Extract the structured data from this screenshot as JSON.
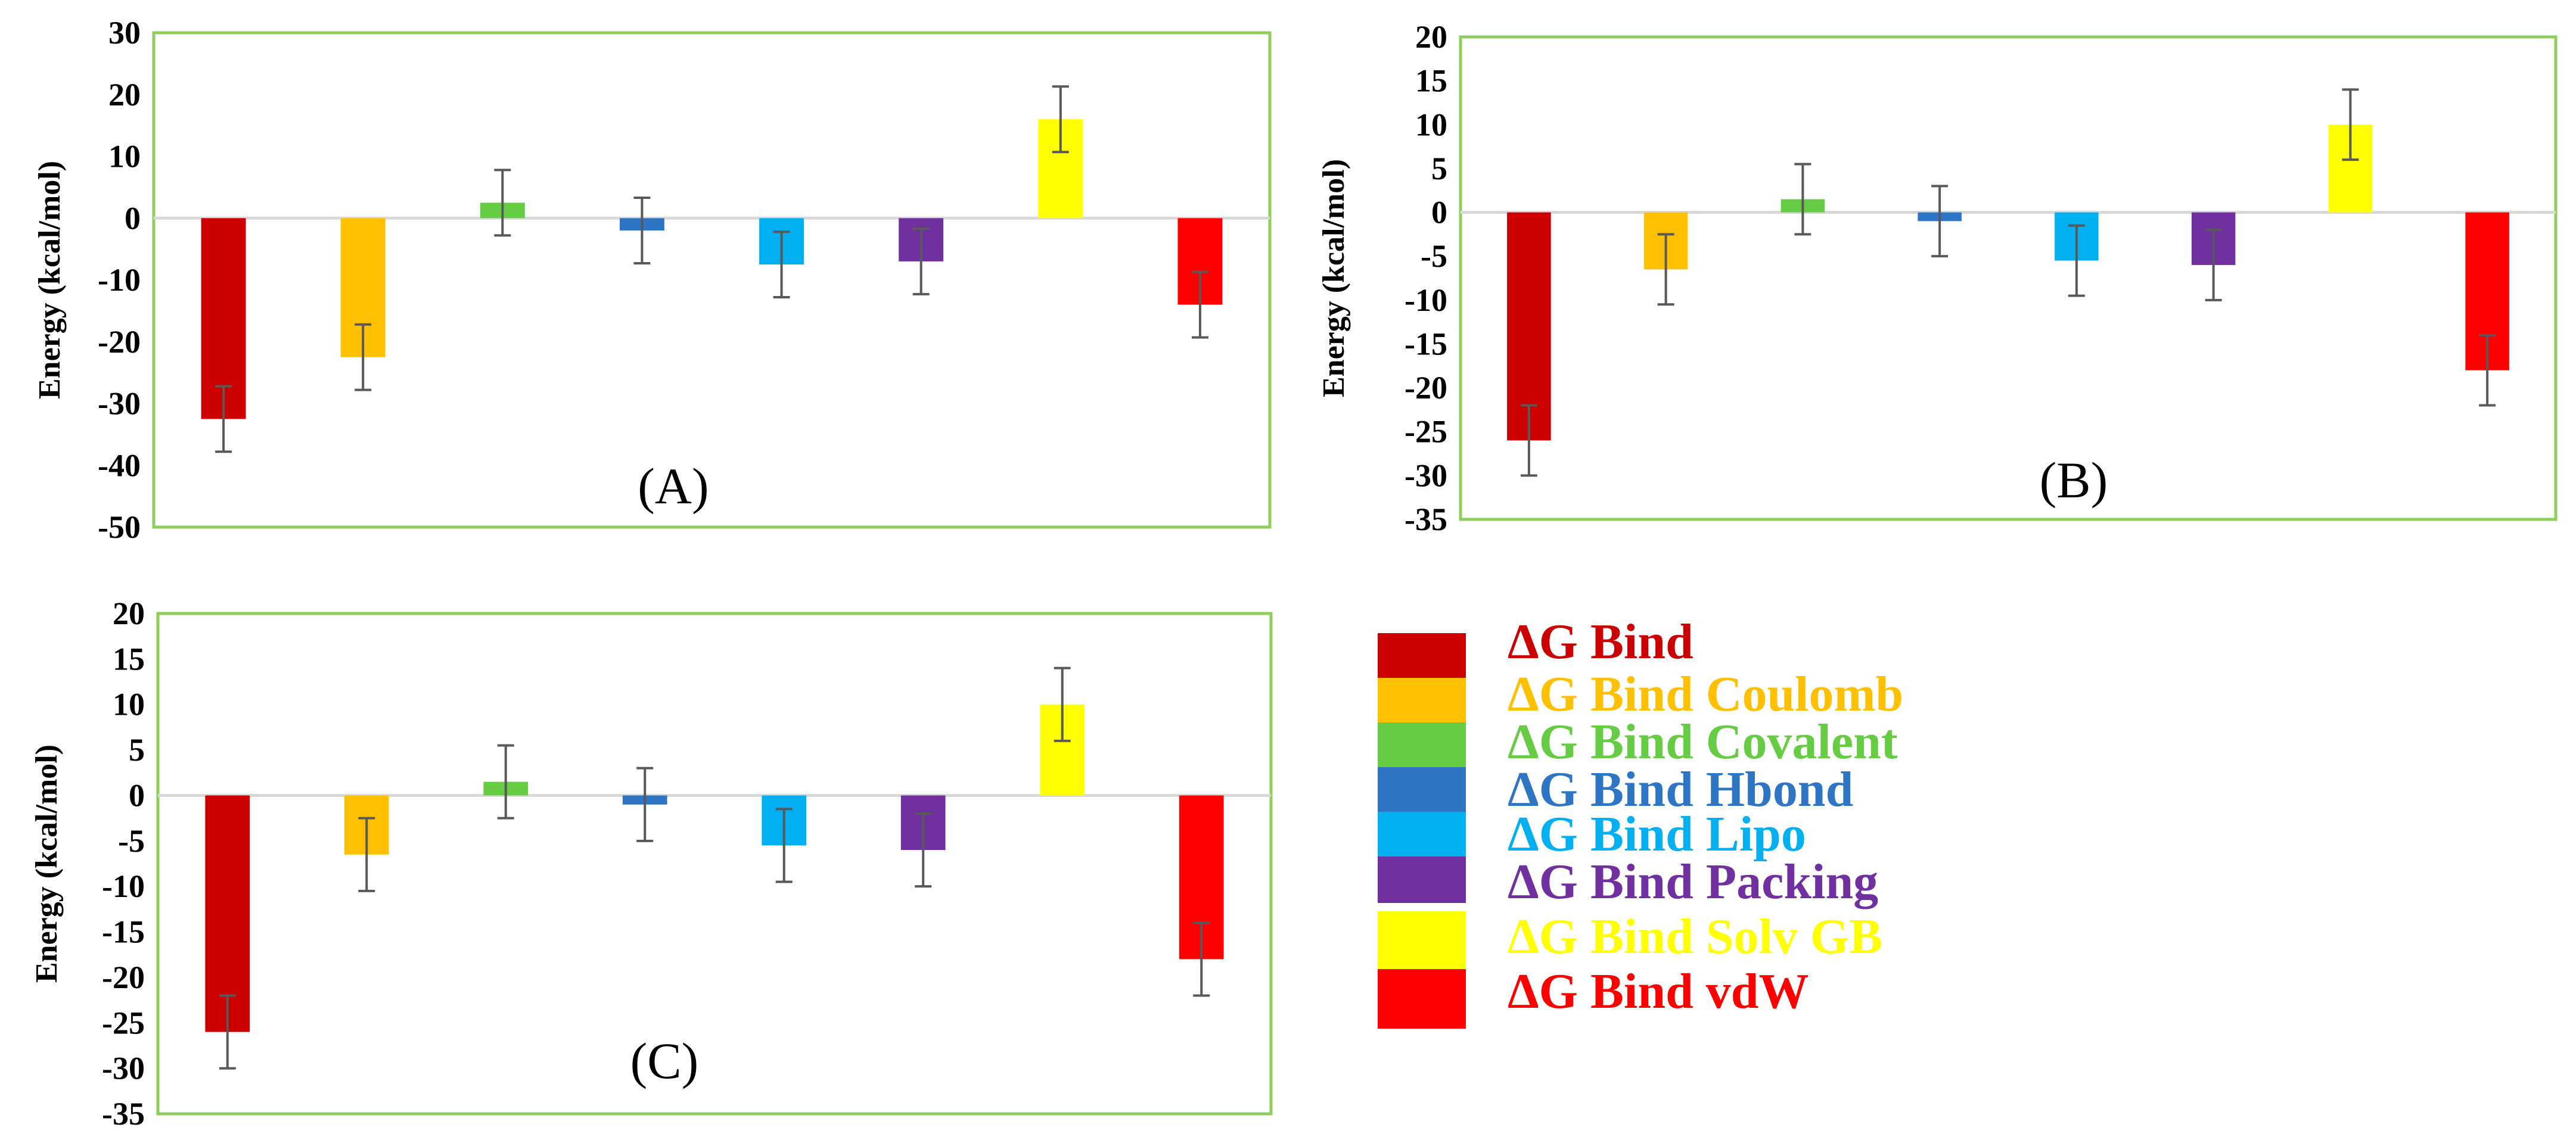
{
  "chart_data": {
    "type": "bar",
    "categories": [
      "ΔG Bind",
      "ΔG Bind Coulomb",
      "ΔG Bind Covalent",
      "ΔG Bind Hbond",
      "ΔG Bind Lipo",
      "ΔG Bind Packing",
      "ΔG Bind Solv GB",
      "ΔG Bind vdW"
    ],
    "colors": [
      "#cc0000",
      "#ffc000",
      "#66cc44",
      "#2e75c6",
      "#00b0f0",
      "#7030a0",
      "#ffff00",
      "#ff0000"
    ],
    "legend": {
      "position": "bottom-right",
      "entries": [
        "ΔG Bind",
        "ΔG Bind Coulomb",
        "ΔG Bind Covalent",
        "ΔG Bind Hbond",
        "ΔG Bind Lipo",
        "ΔG Bind Packing",
        "ΔG Bind Solv GB",
        "ΔG Bind vdW"
      ],
      "text_colors": [
        "#cc0000",
        "#ffc000",
        "#66cc44",
        "#2e75c6",
        "#00b0f0",
        "#7030a0",
        "#ffff00",
        "#ff0000"
      ]
    },
    "panels": [
      {
        "label": "(A)",
        "ylabel": "Energy (kcal/mol)",
        "xlabel": "",
        "ylim": [
          -50,
          30
        ],
        "yticks": [
          30,
          20,
          10,
          0,
          -10,
          -20,
          -30,
          -40,
          -50
        ],
        "values": [
          -32.5,
          -22.5,
          2.5,
          -2,
          -7.5,
          -7,
          16,
          -14
        ],
        "errors": [
          5.3,
          5.3,
          5.3,
          5.3,
          5.3,
          5.3,
          5.3,
          5.3
        ],
        "grid": false
      },
      {
        "label": "(B)",
        "ylabel": "Energy (kcal/mol)",
        "xlabel": "",
        "ylim": [
          -35,
          20
        ],
        "yticks": [
          20,
          15,
          10,
          5,
          0,
          -5,
          -10,
          -15,
          -20,
          -25,
          -30,
          -35
        ],
        "values": [
          -26,
          -6.5,
          1.5,
          -1,
          -5.5,
          -6,
          10,
          -18
        ],
        "errors": [
          4,
          4,
          4,
          4,
          4,
          4,
          4,
          4
        ],
        "grid": false
      },
      {
        "label": "(C)",
        "ylabel": "Energy (kcal/mol)",
        "xlabel": "",
        "ylim": [
          -35,
          20
        ],
        "yticks": [
          20,
          15,
          10,
          5,
          0,
          -5,
          -10,
          -15,
          -20,
          -25,
          -30,
          -35
        ],
        "values": [
          -26,
          -6.5,
          1.5,
          -1,
          -5.5,
          -6,
          10,
          -18
        ],
        "errors": [
          4,
          4,
          4,
          4,
          4,
          4,
          4,
          4
        ],
        "grid": false
      }
    ]
  }
}
